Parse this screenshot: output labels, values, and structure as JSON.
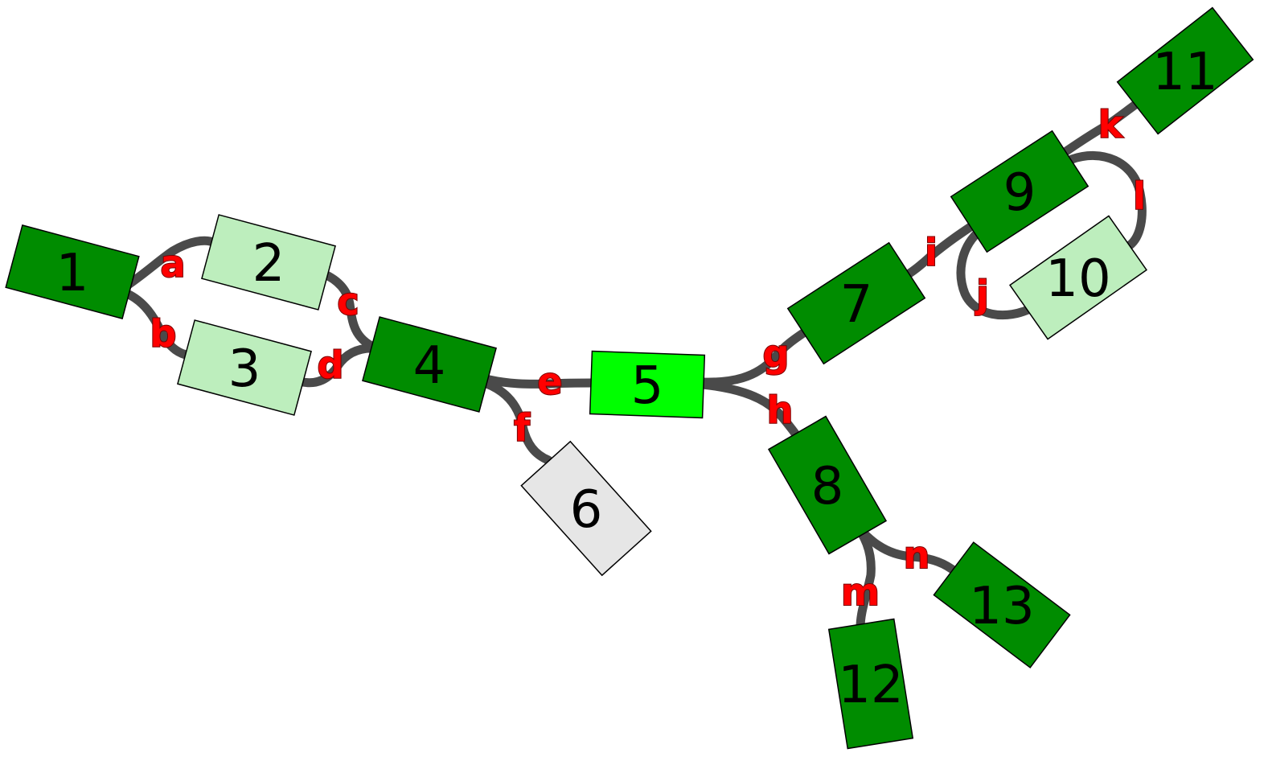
{
  "colors": {
    "dark_green": "#008c00",
    "pale_green": "#bdeebd",
    "bright_green": "#00ff00",
    "light_gray": "#e6e6e6",
    "edge": "#4a4a4a",
    "edge_label": "#ff0000"
  },
  "nodes": [
    {
      "id": "1",
      "label": "1",
      "color": "dark_green"
    },
    {
      "id": "2",
      "label": "2",
      "color": "pale_green"
    },
    {
      "id": "3",
      "label": "3",
      "color": "pale_green"
    },
    {
      "id": "4",
      "label": "4",
      "color": "dark_green"
    },
    {
      "id": "5",
      "label": "5",
      "color": "bright_green"
    },
    {
      "id": "6",
      "label": "6",
      "color": "light_gray"
    },
    {
      "id": "7",
      "label": "7",
      "color": "dark_green"
    },
    {
      "id": "8",
      "label": "8",
      "color": "dark_green"
    },
    {
      "id": "9",
      "label": "9",
      "color": "dark_green"
    },
    {
      "id": "10",
      "label": "10",
      "color": "pale_green"
    },
    {
      "id": "11",
      "label": "11",
      "color": "dark_green"
    },
    {
      "id": "12",
      "label": "12",
      "color": "dark_green"
    },
    {
      "id": "13",
      "label": "13",
      "color": "dark_green"
    }
  ],
  "edges": [
    {
      "id": "a",
      "label": "a",
      "from": "1",
      "to": "2"
    },
    {
      "id": "b",
      "label": "b",
      "from": "1",
      "to": "3"
    },
    {
      "id": "c",
      "label": "c",
      "from": "2",
      "to": "4"
    },
    {
      "id": "d",
      "label": "d",
      "from": "3",
      "to": "4"
    },
    {
      "id": "e",
      "label": "e",
      "from": "4",
      "to": "5"
    },
    {
      "id": "f",
      "label": "f",
      "from": "4",
      "to": "6"
    },
    {
      "id": "g",
      "label": "g",
      "from": "5",
      "to": "7"
    },
    {
      "id": "h",
      "label": "h",
      "from": "5",
      "to": "8"
    },
    {
      "id": "i",
      "label": "i",
      "from": "7",
      "to": "9"
    },
    {
      "id": "j",
      "label": "j",
      "from": "9",
      "to": "10"
    },
    {
      "id": "k",
      "label": "k",
      "from": "9",
      "to": "11"
    },
    {
      "id": "l",
      "label": "l",
      "from": "9",
      "to": "10"
    },
    {
      "id": "m",
      "label": "m",
      "from": "8",
      "to": "12"
    },
    {
      "id": "n",
      "label": "n",
      "from": "8",
      "to": "13"
    }
  ]
}
